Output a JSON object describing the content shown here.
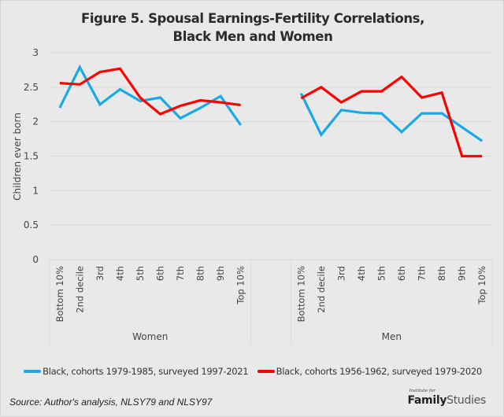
{
  "chart_data": {
    "type": "line",
    "title": "Figure 5. Spousal Earnings-Fertility Correlations,",
    "title_line2": "Black Men and Women",
    "ylabel": "Children ever born",
    "xlabel": "",
    "ylim": [
      0,
      3
    ],
    "yticks": [
      "0",
      "0.5",
      "1",
      "1.5",
      "2",
      "2.5",
      "3"
    ],
    "ytick_values": [
      0,
      0.5,
      1,
      1.5,
      2,
      2.5,
      3
    ],
    "grid": true,
    "legend_position": "bottom",
    "groups": [
      {
        "name": "Women",
        "categories": [
          "Bottom 10%",
          "2nd decile",
          "3rd",
          "4th",
          "5th",
          "6th",
          "7th",
          "8th",
          "9th",
          "Top 10%"
        ],
        "series": [
          {
            "name": "Black, cohorts 1979-1985, surveyed 1997-2021",
            "color": "#1aa8e6",
            "values": [
              2.2,
              2.79,
              2.25,
              2.47,
              2.3,
              2.35,
              2.05,
              2.2,
              2.37,
              1.95
            ]
          },
          {
            "name": "Black, cohorts 1956-1962, surveyed 1979-2020",
            "color": "#ff0000",
            "values": [
              2.56,
              2.54,
              2.72,
              2.77,
              2.35,
              2.11,
              2.23,
              2.31,
              2.28,
              2.24
            ]
          }
        ]
      },
      {
        "name": "Men",
        "categories": [
          "Bottom 10%",
          "2nd decile",
          "3rd",
          "4th",
          "5th",
          "6th",
          "7th",
          "8th",
          "9th",
          "Top 10%"
        ],
        "series": [
          {
            "name": "Black, cohorts 1979-1985, surveyed 1997-2021",
            "color": "#1aa8e6",
            "values": [
              2.41,
              1.81,
              2.17,
              2.13,
              2.12,
              1.85,
              2.12,
              2.12,
              1.92,
              1.72
            ]
          },
          {
            "name": "Black, cohorts 1956-1962, surveyed 1979-2020",
            "color": "#ff0000",
            "values": [
              2.34,
              2.5,
              2.28,
              2.44,
              2.44,
              2.65,
              2.35,
              2.42,
              1.5,
              1.5
            ]
          }
        ]
      }
    ]
  },
  "legend": {
    "items": [
      {
        "label": "Black, cohorts 1979-1985, surveyed 1997-2021",
        "color": "#1aa8e6"
      },
      {
        "label": "Black, cohorts 1956-1962, surveyed 1979-2020",
        "color": "#ff0000"
      }
    ]
  },
  "source": "Source: Author's analysis, NLSY79 and NLSY97",
  "logo": {
    "small": "Institute for",
    "bold": "Family",
    "light": "Studies"
  }
}
